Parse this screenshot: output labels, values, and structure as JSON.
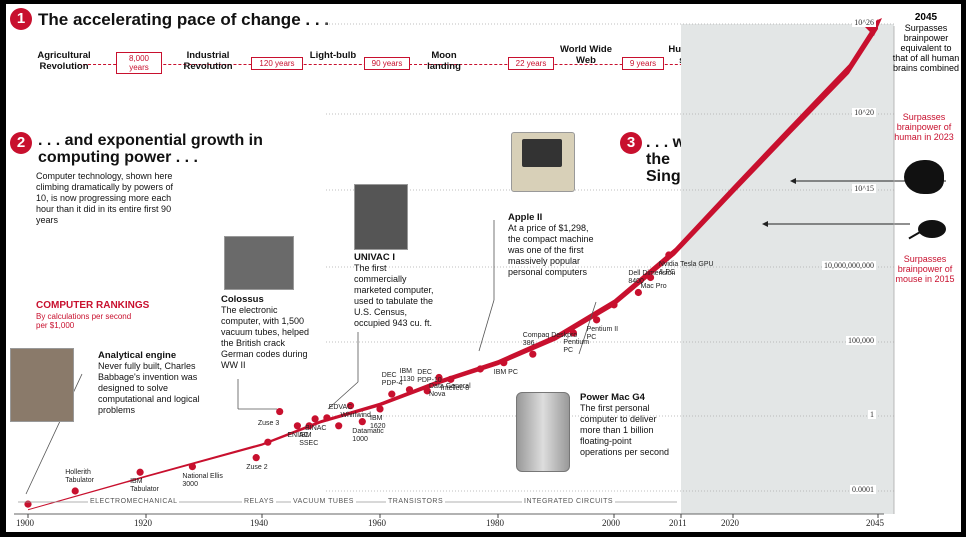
{
  "section1": {
    "badge": "1",
    "title": "The accelerating pace of change . . .",
    "milestones": [
      "Agricultural Revolution",
      "Industrial Revolution",
      "Light-bulb",
      "Moon landing",
      "World Wide Web",
      "Human genome sequenced"
    ],
    "gaps": [
      "8,000 years",
      "120 years",
      "90 years",
      "22 years",
      "9 years"
    ]
  },
  "section2": {
    "badge": "2",
    "title": ". . . and exponential growth in computing power . . .",
    "body": "Computer technology, shown here climbing dramatically by powers of 10, is now progressing more each hour than it did in its entire first 90 years"
  },
  "section3": {
    "badge": "3",
    "title": ". . . will lead to the Singularity"
  },
  "rankings": {
    "title": "COMPUTER RANKINGS",
    "subtitle": "By calculations per second per $1,000"
  },
  "callouts": {
    "analytical": {
      "title": "Analytical engine",
      "body": "Never fully built, Charles Babbage's invention was designed to solve computational and logical problems"
    },
    "colossus": {
      "title": "Colossus",
      "body": "The electronic computer, with 1,500 vacuum tubes, helped the British crack German codes during WW II"
    },
    "univac": {
      "title": "UNIVAC I",
      "body": "The first commercially marketed computer, used to tabulate the U.S. Census, occupied 943 cu. ft."
    },
    "apple": {
      "title": "Apple II",
      "body": "At a price of $1,298, the compact machine was one of the first massively popular personal computers"
    },
    "powermac": {
      "title": "Power Mac G4",
      "body": "The first personal computer to deliver more than 1 billion floating-point operations per second"
    }
  },
  "right_notes": {
    "year2045": "2045",
    "y2045_text": "Surpasses brainpower equivalent to that of all human brains combined",
    "human2023": "Surpasses brainpower of human in 2023",
    "mouse2015": "Surpasses brainpower of mouse in 2015"
  },
  "eras": [
    "ELECTROMECHANICAL",
    "RELAYS",
    "VACUUM TUBES",
    "TRANSISTORS",
    "INTEGRATED CIRCUITS"
  ],
  "colors": {
    "accent": "#c8102e",
    "future_shade": "#e3e6e6"
  },
  "chart_data": {
    "type": "line",
    "title": "",
    "xlabel": "",
    "ylabel": "",
    "y_scale": "log",
    "xlim": [
      1900,
      2045
    ],
    "ylim": [
      1e-06,
      1e+26
    ],
    "x_ticks": [
      "1900",
      "1920",
      "1940",
      "1960",
      "1980",
      "2000",
      "2011",
      "2020",
      "2045"
    ],
    "y_ticks": [
      "0.0001",
      "1",
      "100,000",
      "10,000,000,000",
      "10^15",
      "10^20",
      "10^26"
    ],
    "shaded_future_from": 2011,
    "points": [
      {
        "label": "Analytical engine",
        "x": 1900,
        "y": 2e-05
      },
      {
        "label": "Hollerith Tabulator",
        "x": 1908,
        "y": 0.0001
      },
      {
        "label": "IBM Tabulator",
        "x": 1919,
        "y": 0.001
      },
      {
        "label": "National Ellis 3000",
        "x": 1928,
        "y": 0.002
      },
      {
        "label": "Zuse 2",
        "x": 1939,
        "y": 0.006
      },
      {
        "label": "Zuse 3",
        "x": 1941,
        "y": 0.04
      },
      {
        "label": "Colossus",
        "x": 1943,
        "y": 2
      },
      {
        "label": "ENIAC",
        "x": 1946,
        "y": 0.3
      },
      {
        "label": "IBM SSEC",
        "x": 1948,
        "y": 0.3
      },
      {
        "label": "BINAC",
        "x": 1949,
        "y": 0.7
      },
      {
        "label": "UNIVAC I",
        "x": 1951,
        "y": 0.8
      },
      {
        "label": "EDVAC",
        "x": 1953,
        "y": 0.3
      },
      {
        "label": "Whirlwind",
        "x": 1955,
        "y": 5
      },
      {
        "label": "Datamatic 1000",
        "x": 1957,
        "y": 0.5
      },
      {
        "label": "IBM 1620",
        "x": 1960,
        "y": 3
      },
      {
        "label": "DEC PDP-4",
        "x": 1962,
        "y": 30
      },
      {
        "label": "IBM 1130",
        "x": 1965,
        "y": 60
      },
      {
        "label": "DEC PDP-10",
        "x": 1968,
        "y": 50
      },
      {
        "label": "Data General Nova",
        "x": 1970,
        "y": 400
      },
      {
        "label": "Intellec-8",
        "x": 1972,
        "y": 300
      },
      {
        "label": "Apple II",
        "x": 1977,
        "y": 1500
      },
      {
        "label": "IBM PC",
        "x": 1981,
        "y": 4000
      },
      {
        "label": "Compaq Deskpro 386",
        "x": 1986,
        "y": 15000
      },
      {
        "label": "Pentium PC",
        "x": 1993,
        "y": 400000
      },
      {
        "label": "Pentium II PC",
        "x": 1997,
        "y": 3000000
      },
      {
        "label": "Power Mac G4",
        "x": 2000,
        "y": 30000000
      },
      {
        "label": "Dell Dimension 8400",
        "x": 2004,
        "y": 200000000
      },
      {
        "label": "Mac Pro",
        "x": 2006,
        "y": 2000000000
      },
      {
        "label": "Nvidia Tesla GPU & PC",
        "x": 2009,
        "y": 60000000000
      }
    ]
  }
}
